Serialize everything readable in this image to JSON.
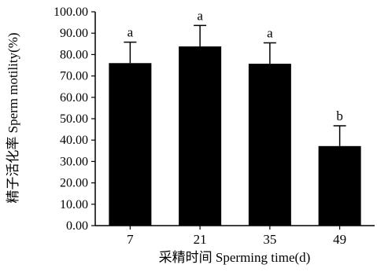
{
  "chart_data": {
    "type": "bar",
    "categories": [
      "7",
      "21",
      "35",
      "49"
    ],
    "values": [
      76.0,
      83.8,
      75.7,
      37.2
    ],
    "errors": [
      9.8,
      9.8,
      9.8,
      9.5
    ],
    "significance": [
      "a",
      "a",
      "a",
      "b"
    ],
    "xlabel": "采精时间 Sperming time(d)",
    "ylabel": "精子活化率 Sperm motility(%)",
    "ylim": [
      0,
      100
    ],
    "yticks": [
      "0.00",
      "10.00",
      "20.00",
      "30.00",
      "40.00",
      "50.00",
      "60.00",
      "70.00",
      "80.00",
      "90.00",
      "100.00"
    ],
    "bar_color": "#000000",
    "grid": false,
    "legend": "none"
  }
}
